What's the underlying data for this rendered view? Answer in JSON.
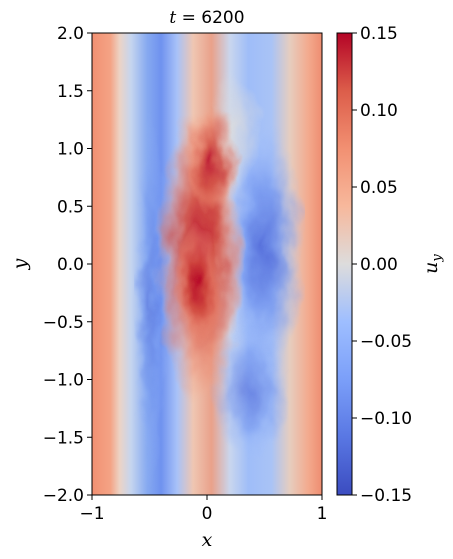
{
  "chart_data": {
    "type": "heatmap",
    "title": "t = 6200",
    "title_var": "t",
    "title_rest": " = 6200",
    "xlabel": "x",
    "ylabel": "y",
    "xlim": [
      -1,
      1
    ],
    "ylim": [
      -2,
      2
    ],
    "xticks": [
      -1,
      0,
      1
    ],
    "xtick_labels": [
      "−1",
      "0",
      "1"
    ],
    "yticks": [
      -2.0,
      -1.5,
      -1.0,
      -0.5,
      0.0,
      0.5,
      1.0,
      1.5,
      2.0
    ],
    "ytick_labels": [
      "−2.0",
      "−1.5",
      "−1.0",
      "−0.5",
      "0.0",
      "0.5",
      "1.0",
      "1.5",
      "2.0"
    ],
    "colorbar": {
      "label_base": "u",
      "label_sub": "y",
      "colormap": "coolwarm",
      "vmin": -0.15,
      "vmax": 0.15,
      "ticks": [
        -0.15,
        -0.1,
        -0.05,
        0.0,
        0.05,
        0.1,
        0.15
      ],
      "tick_labels": [
        "−0.15",
        "−0.10",
        "−0.05",
        "0.00",
        "0.05",
        "0.10",
        "0.15"
      ]
    },
    "features": [
      {
        "region": "left edge band, x ≈ -1 to -0.75",
        "value_estimate": 0.07
      },
      {
        "region": "blue band, x ≈ -0.5 to -0.3",
        "value_estimate": -0.08
      },
      {
        "region": "central red core, x ≈ -0.25 to 0.1, y ≈ -0.7 to 1.2",
        "value_estimate": 0.14
      },
      {
        "region": "blue lobe, x ≈ 0.4 to 0.75, y ≈ -0.8 to 1.2",
        "value_estimate": -0.1
      },
      {
        "region": "right edge band, x ≈ 0.85 to 1",
        "value_estimate": 0.06
      }
    ]
  }
}
